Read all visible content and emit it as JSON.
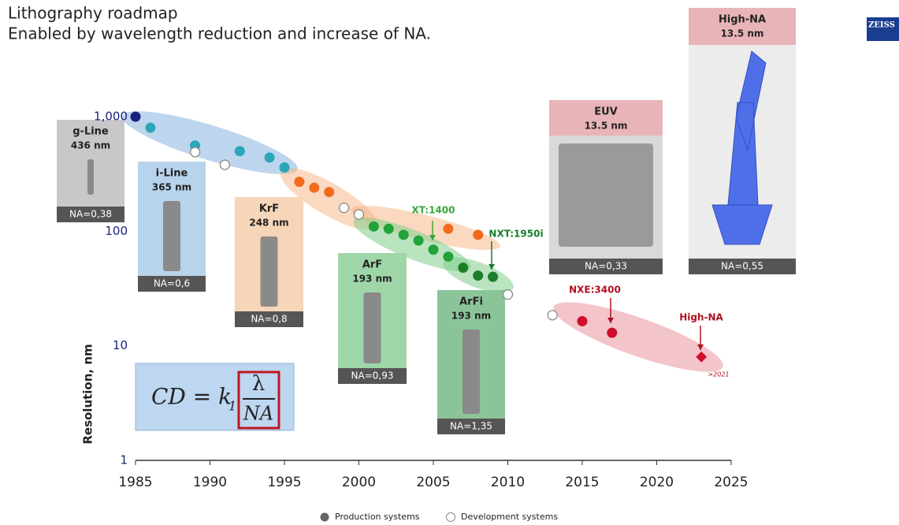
{
  "header": {
    "title": "Lithography roadmap",
    "subtitle": "Enabled by wavelength reduction and increase of NA.",
    "logo": "ZEISS"
  },
  "chart_data": {
    "type": "scatter",
    "ylabel": "Resolution, nm",
    "ylog": true,
    "xlim": [
      1984.5,
      2026
    ],
    "ylim": [
      1,
      1000
    ],
    "xticks": [
      1985,
      1990,
      1995,
      2000,
      2005,
      2010,
      2015,
      2020,
      2025
    ],
    "yticks": [
      1,
      10,
      100,
      {
        "value": 1000,
        "label": "1,000"
      }
    ],
    "legend": "bottom",
    "series": [
      {
        "name": "Production systems",
        "color": "#666666",
        "filled": true,
        "x": [
          1985,
          1986,
          1989,
          1992,
          1994,
          1995,
          1996,
          1997,
          1998,
          2001,
          2002,
          2003,
          2004,
          2005,
          2006,
          2006,
          2007,
          2008,
          2008,
          2009,
          2015,
          2017,
          2023
        ],
        "values": [
          1000,
          800,
          560,
          500,
          440,
          360,
          270,
          240,
          220,
          110,
          105,
          93,
          83,
          69,
          60,
          105,
          48,
          41,
          93,
          40,
          16.4,
          13,
          8
        ],
        "colors": [
          "#1a237e",
          "#2aa6b8",
          "#2aa6b8",
          "#2aa6b8",
          "#2aa6b8",
          "#2aa6b8",
          "#f26b1d",
          "#f26b1d",
          "#f26b1d",
          "#22a33a",
          "#22a33a",
          "#22a33a",
          "#22a33a",
          "#22a33a",
          "#22a33a",
          "#f26b1d",
          "#1e7d2a",
          "#1e7d2a",
          "#f26b1d",
          "#1e7d2a",
          "#d0102a",
          "#d0102a",
          "#d0102a"
        ],
        "markers": [
          "circle",
          "circle",
          "circle",
          "circle",
          "circle",
          "circle",
          "circle",
          "circle",
          "circle",
          "circle",
          "circle",
          "circle",
          "circle",
          "circle",
          "circle",
          "circle",
          "circle",
          "circle",
          "circle",
          "circle",
          "circle",
          "circle",
          "diamond"
        ]
      },
      {
        "name": "Development systems",
        "color": "#888888",
        "filled": false,
        "x": [
          1989,
          1991,
          1999,
          2000,
          2010,
          2013
        ],
        "values": [
          490,
          380,
          160,
          140,
          28,
          18.5
        ]
      }
    ],
    "annotations": [
      "XT:1400",
      "NXT:1950i",
      "NXE:3400",
      "High-NA",
      ">2021"
    ]
  },
  "panels": [
    {
      "title": "g-Line",
      "wavelength": "436 nm",
      "na": "NA=0,38"
    },
    {
      "title": "i-Line",
      "wavelength": "365 nm",
      "na": "NA=0,6"
    },
    {
      "title": "KrF",
      "wavelength": "248 nm",
      "na": "NA=0,8"
    },
    {
      "title": "ArF",
      "wavelength": "193 nm",
      "na": "NA=0,93"
    },
    {
      "title": "ArFi",
      "wavelength": "193 nm",
      "na": "NA=1,35"
    },
    {
      "title": "EUV",
      "wavelength": "13.5 nm",
      "na": "NA=0,33"
    },
    {
      "title": "High-NA",
      "wavelength": "13.5 nm",
      "na": "NA=0,55"
    }
  ],
  "formula": {
    "lhs": "CD = k",
    "sub": "1",
    "num": "λ",
    "den": "NA"
  }
}
